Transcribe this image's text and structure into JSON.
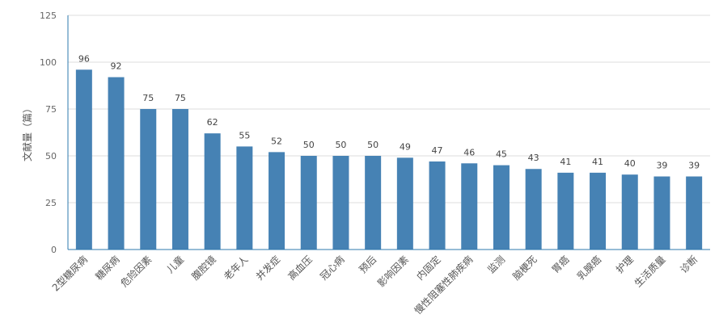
{
  "chart_data": {
    "type": "bar",
    "categories": [
      "2型糖尿病",
      "糖尿病",
      "危险因素",
      "儿童",
      "腹腔镜",
      "老年人",
      "并发症",
      "高血压",
      "冠心病",
      "预后",
      "影响因素",
      "内固定",
      "慢性阻塞性肺疾病",
      "监测",
      "脑梗死",
      "胃癌",
      "乳腺癌",
      "护理",
      "生活质量",
      "诊断"
    ],
    "values": [
      96,
      92,
      75,
      75,
      62,
      55,
      52,
      50,
      50,
      50,
      49,
      47,
      46,
      45,
      43,
      41,
      41,
      40,
      39,
      39
    ],
    "ylabel": "文献量（篇）",
    "xlabel": "",
    "ylim": [
      0,
      125
    ],
    "yticks": [
      0,
      25,
      50,
      75,
      100,
      125
    ],
    "grid": true,
    "bar_color": "#4682b4",
    "axis_color": "#2e78ac"
  }
}
